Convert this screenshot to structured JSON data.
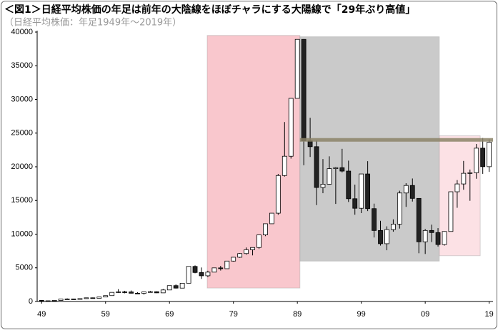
{
  "chart_data": {
    "type": "candlestick",
    "title": "＜図1＞日経平均株価の年足は前年の大陰線をほぼチャラにする大陽線で「29年ぶり高値」",
    "subtitle": "（日経平均株価：年足1949年〜2019年）",
    "x": [
      1949,
      1950,
      1951,
      1952,
      1953,
      1954,
      1955,
      1956,
      1957,
      1958,
      1959,
      1960,
      1961,
      1962,
      1963,
      1964,
      1965,
      1966,
      1967,
      1968,
      1969,
      1970,
      1971,
      1972,
      1973,
      1974,
      1975,
      1976,
      1977,
      1978,
      1979,
      1980,
      1981,
      1982,
      1983,
      1984,
      1985,
      1986,
      1987,
      1988,
      1989,
      1990,
      1991,
      1992,
      1993,
      1994,
      1995,
      1996,
      1997,
      1998,
      1999,
      2000,
      2001,
      2002,
      2003,
      2004,
      2005,
      2006,
      2007,
      2008,
      2009,
      2010,
      2011,
      2012,
      2013,
      2014,
      2015,
      2016,
      2017,
      2018,
      2019
    ],
    "open": [
      176,
      109,
      101,
      166,
      362,
      377,
      356,
      425,
      549,
      474,
      666,
      874,
      1356,
      1432,
      1420,
      1225,
      1216,
      1417,
      1452,
      1283,
      1714,
      2358,
      1987,
      2713,
      5207,
      4306,
      3817,
      4359,
      4991,
      4866,
      6002,
      6569,
      7116,
      7681,
      8016,
      9893,
      11542,
      13113,
      18701,
      21564,
      30159,
      38916,
      23849,
      22984,
      16925,
      17417,
      19723,
      19868,
      19361,
      15259,
      13842,
      18934,
      13786,
      10543,
      8579,
      10677,
      11489,
      16111,
      17226,
      15308,
      8860,
      10546,
      10229,
      8455,
      10395,
      16291,
      17451,
      19034,
      19114,
      22765,
      20015
    ],
    "high": [
      176,
      114,
      167,
      362,
      474,
      380,
      425,
      550,
      595,
      667,
      874,
      1356,
      1829,
      1589,
      1634,
      1369,
      1417,
      1588,
      1506,
      1851,
      2358,
      2534,
      2740,
      5207,
      5359,
      5050,
      4564,
      4991,
      5287,
      6002,
      6590,
      7188,
      8019,
      8026,
      9893,
      11577,
      13129,
      18936,
      26646,
      30159,
      38916,
      38950,
      27270,
      23901,
      21148,
      21552,
      19975,
      22666,
      20910,
      17352,
      18934,
      20833,
      14529,
      11980,
      11161,
      12195,
      16445,
      17563,
      18262,
      15308,
      10767,
      11408,
      10891,
      10433,
      16320,
      18030,
      20868,
      19592,
      23382,
      24270,
      24066
    ],
    "low": [
      109,
      85,
      97,
      162,
      295,
      315,
      348,
      424,
      471,
      474,
      666,
      870,
      1258,
      1216,
      1200,
      1202,
      1020,
      1364,
      1250,
      1266,
      1733,
      1929,
      1981,
      2712,
      4188,
      3355,
      3628,
      4359,
      4597,
      4867,
      5925,
      6475,
      6957,
      6849,
      7803,
      9703,
      11545,
      12881,
      18544,
      21217,
      30183,
      20222,
      21456,
      14309,
      16078,
      17370,
      14485,
      19161,
      14775,
      12880,
      13122,
      13423,
      9504,
      8303,
      7608,
      10365,
      10825,
      14045,
      14837,
      7163,
      7055,
      8824,
      8160,
      8295,
      10398,
      13910,
      16592,
      14952,
      18224,
      18949,
      19241
    ],
    "close": [
      109,
      101,
      166,
      362,
      377,
      356,
      425,
      549,
      474,
      666,
      874,
      1356,
      1432,
      1420,
      1225,
      1216,
      1417,
      1452,
      1283,
      1714,
      2358,
      1987,
      2713,
      5207,
      4306,
      3817,
      4359,
      4991,
      4866,
      6002,
      6569,
      7116,
      7681,
      8016,
      9893,
      11542,
      13113,
      18701,
      21564,
      30159,
      38916,
      23849,
      22984,
      16925,
      17417,
      19723,
      19868,
      19361,
      15259,
      13842,
      18934,
      13786,
      10543,
      8579,
      10677,
      11489,
      16111,
      17226,
      15308,
      8860,
      10546,
      10229,
      8455,
      10395,
      16291,
      17451,
      19034,
      19114,
      22765,
      20015,
      23656
    ],
    "up_color": "#ffffff",
    "down_color": "#222222",
    "xlim": [
      1948.3,
      2019.6
    ],
    "ylim": [
      0,
      40000
    ],
    "xticks": [
      {
        "value": 1949,
        "label": "49"
      },
      {
        "value": 1959,
        "label": "59"
      },
      {
        "value": 1969,
        "label": "69"
      },
      {
        "value": 1979,
        "label": "79"
      },
      {
        "value": 1989,
        "label": "89"
      },
      {
        "value": 1999,
        "label": "99"
      },
      {
        "value": 2009,
        "label": "09"
      },
      {
        "value": 2019,
        "label": "19"
      }
    ],
    "yticks": [
      0,
      5000,
      10000,
      15000,
      20000,
      25000,
      30000,
      35000,
      40000
    ],
    "grid": false,
    "shaded_regions": [
      {
        "x": [
          1974.9,
          1989.4
        ],
        "y": [
          2000,
          39500
        ],
        "color": "#f7b9c1"
      },
      {
        "x": [
          1989.4,
          2011.2
        ],
        "y": [
          6000,
          39300
        ],
        "color": "#bdbdbd"
      },
      {
        "x": [
          2011.2,
          2017.6
        ],
        "y": [
          6800,
          24600
        ],
        "color": "#fbd9df"
      }
    ],
    "reference_line": {
      "value": 24000,
      "x": [
        1989.4,
        2019.6
      ],
      "color": "#8c8468"
    }
  }
}
